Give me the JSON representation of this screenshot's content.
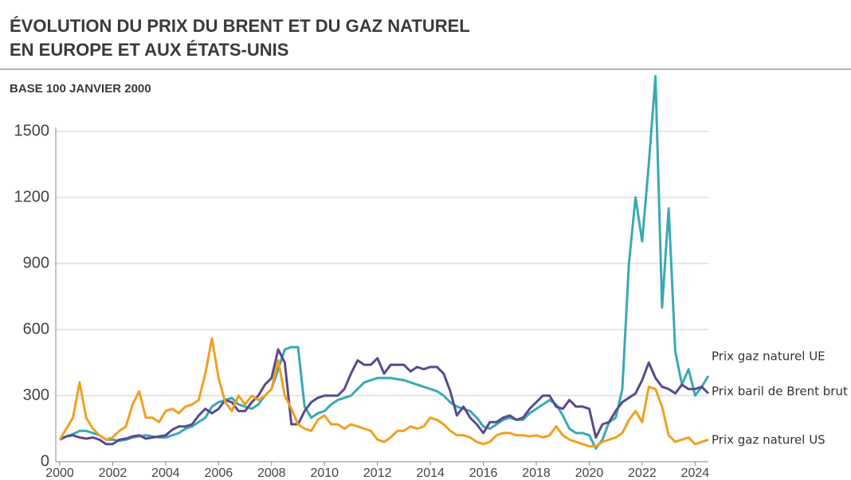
{
  "chart_data": {
    "type": "line",
    "title": [
      "ÉVOLUTION DU PRIX DU BRENT ET DU GAZ NATUREL",
      "EN EUROPE ET AUX ÉTATS-UNIS"
    ],
    "subtitle": "BASE 100 JANVIER 2000",
    "x": [
      2000,
      2000.25,
      2000.5,
      2000.75,
      2001,
      2001.25,
      2001.5,
      2001.75,
      2002,
      2002.25,
      2002.5,
      2002.75,
      2003,
      2003.25,
      2003.5,
      2003.75,
      2004,
      2004.25,
      2004.5,
      2004.75,
      2005,
      2005.25,
      2005.5,
      2005.75,
      2006,
      2006.25,
      2006.5,
      2006.75,
      2007,
      2007.25,
      2007.5,
      2007.75,
      2008,
      2008.25,
      2008.5,
      2008.75,
      2009,
      2009.25,
      2009.5,
      2009.75,
      2010,
      2010.25,
      2010.5,
      2010.75,
      2011,
      2011.25,
      2011.5,
      2011.75,
      2012,
      2012.25,
      2012.5,
      2012.75,
      2013,
      2013.25,
      2013.5,
      2013.75,
      2014,
      2014.25,
      2014.5,
      2014.75,
      2015,
      2015.25,
      2015.5,
      2015.75,
      2016,
      2016.25,
      2016.5,
      2016.75,
      2017,
      2017.25,
      2017.5,
      2017.75,
      2018,
      2018.25,
      2018.5,
      2018.75,
      2019,
      2019.25,
      2019.5,
      2019.75,
      2020,
      2020.25,
      2020.5,
      2020.75,
      2021,
      2021.25,
      2021.5,
      2021.75,
      2022,
      2022.25,
      2022.5,
      2022.75,
      2023,
      2023.25,
      2023.5,
      2023.75,
      2024,
      2024.25,
      2024.5
    ],
    "xlim": [
      2000,
      2024.5
    ],
    "xticks": [
      2000,
      2002,
      2004,
      2006,
      2008,
      2010,
      2012,
      2014,
      2016,
      2018,
      2020,
      2022,
      2024
    ],
    "ylim": [
      0,
      1500
    ],
    "yticks": [
      0,
      300,
      600,
      900,
      1200,
      1500
    ],
    "grid": true,
    "series": [
      {
        "name": "Prix gaz naturel UE",
        "color": "#3aa9b3",
        "values": [
          100,
          115,
          125,
          140,
          140,
          130,
          120,
          100,
          100,
          95,
          100,
          110,
          115,
          120,
          115,
          110,
          110,
          120,
          130,
          150,
          160,
          180,
          200,
          250,
          270,
          280,
          290,
          260,
          250,
          240,
          260,
          300,
          330,
          420,
          510,
          520,
          520,
          250,
          200,
          220,
          230,
          260,
          280,
          290,
          300,
          330,
          360,
          370,
          380,
          380,
          380,
          375,
          370,
          360,
          350,
          340,
          330,
          320,
          300,
          270,
          250,
          240,
          230,
          200,
          160,
          150,
          170,
          190,
          200,
          190,
          190,
          220,
          240,
          260,
          280,
          260,
          210,
          150,
          130,
          130,
          120,
          60,
          100,
          180,
          200,
          330,
          900,
          1200,
          1000,
          1350,
          1750,
          700,
          1150,
          500,
          350,
          420,
          300,
          340,
          390
        ]
      },
      {
        "name": "Prix baril de Brent brut",
        "color": "#5a4a8c",
        "values": [
          100,
          115,
          120,
          110,
          105,
          110,
          100,
          80,
          80,
          100,
          105,
          115,
          120,
          105,
          110,
          115,
          120,
          145,
          160,
          160,
          170,
          210,
          240,
          220,
          240,
          280,
          270,
          230,
          230,
          270,
          300,
          350,
          380,
          510,
          450,
          170,
          170,
          230,
          270,
          290,
          300,
          300,
          300,
          330,
          400,
          460,
          440,
          440,
          470,
          400,
          440,
          440,
          440,
          410,
          430,
          420,
          430,
          430,
          400,
          320,
          210,
          250,
          200,
          170,
          130,
          180,
          180,
          200,
          210,
          190,
          200,
          240,
          270,
          300,
          300,
          250,
          240,
          280,
          250,
          250,
          240,
          110,
          170,
          180,
          230,
          270,
          290,
          310,
          370,
          450,
          380,
          340,
          330,
          310,
          350,
          330,
          330,
          340,
          310
        ]
      },
      {
        "name": "Prix gaz naturel US",
        "color": "#f0a020",
        "values": [
          100,
          150,
          200,
          360,
          200,
          150,
          120,
          100,
          110,
          140,
          160,
          260,
          320,
          200,
          200,
          180,
          230,
          240,
          220,
          250,
          260,
          280,
          400,
          560,
          380,
          270,
          230,
          300,
          260,
          300,
          280,
          300,
          330,
          460,
          300,
          240,
          170,
          150,
          140,
          190,
          210,
          170,
          170,
          150,
          170,
          160,
          150,
          140,
          100,
          90,
          110,
          140,
          140,
          160,
          150,
          160,
          200,
          190,
          170,
          140,
          120,
          120,
          110,
          90,
          80,
          90,
          120,
          130,
          130,
          120,
          120,
          115,
          120,
          110,
          120,
          160,
          120,
          100,
          90,
          80,
          70,
          70,
          90,
          100,
          110,
          130,
          190,
          230,
          180,
          340,
          330,
          250,
          120,
          90,
          100,
          110,
          80,
          90,
          100
        ]
      }
    ]
  }
}
